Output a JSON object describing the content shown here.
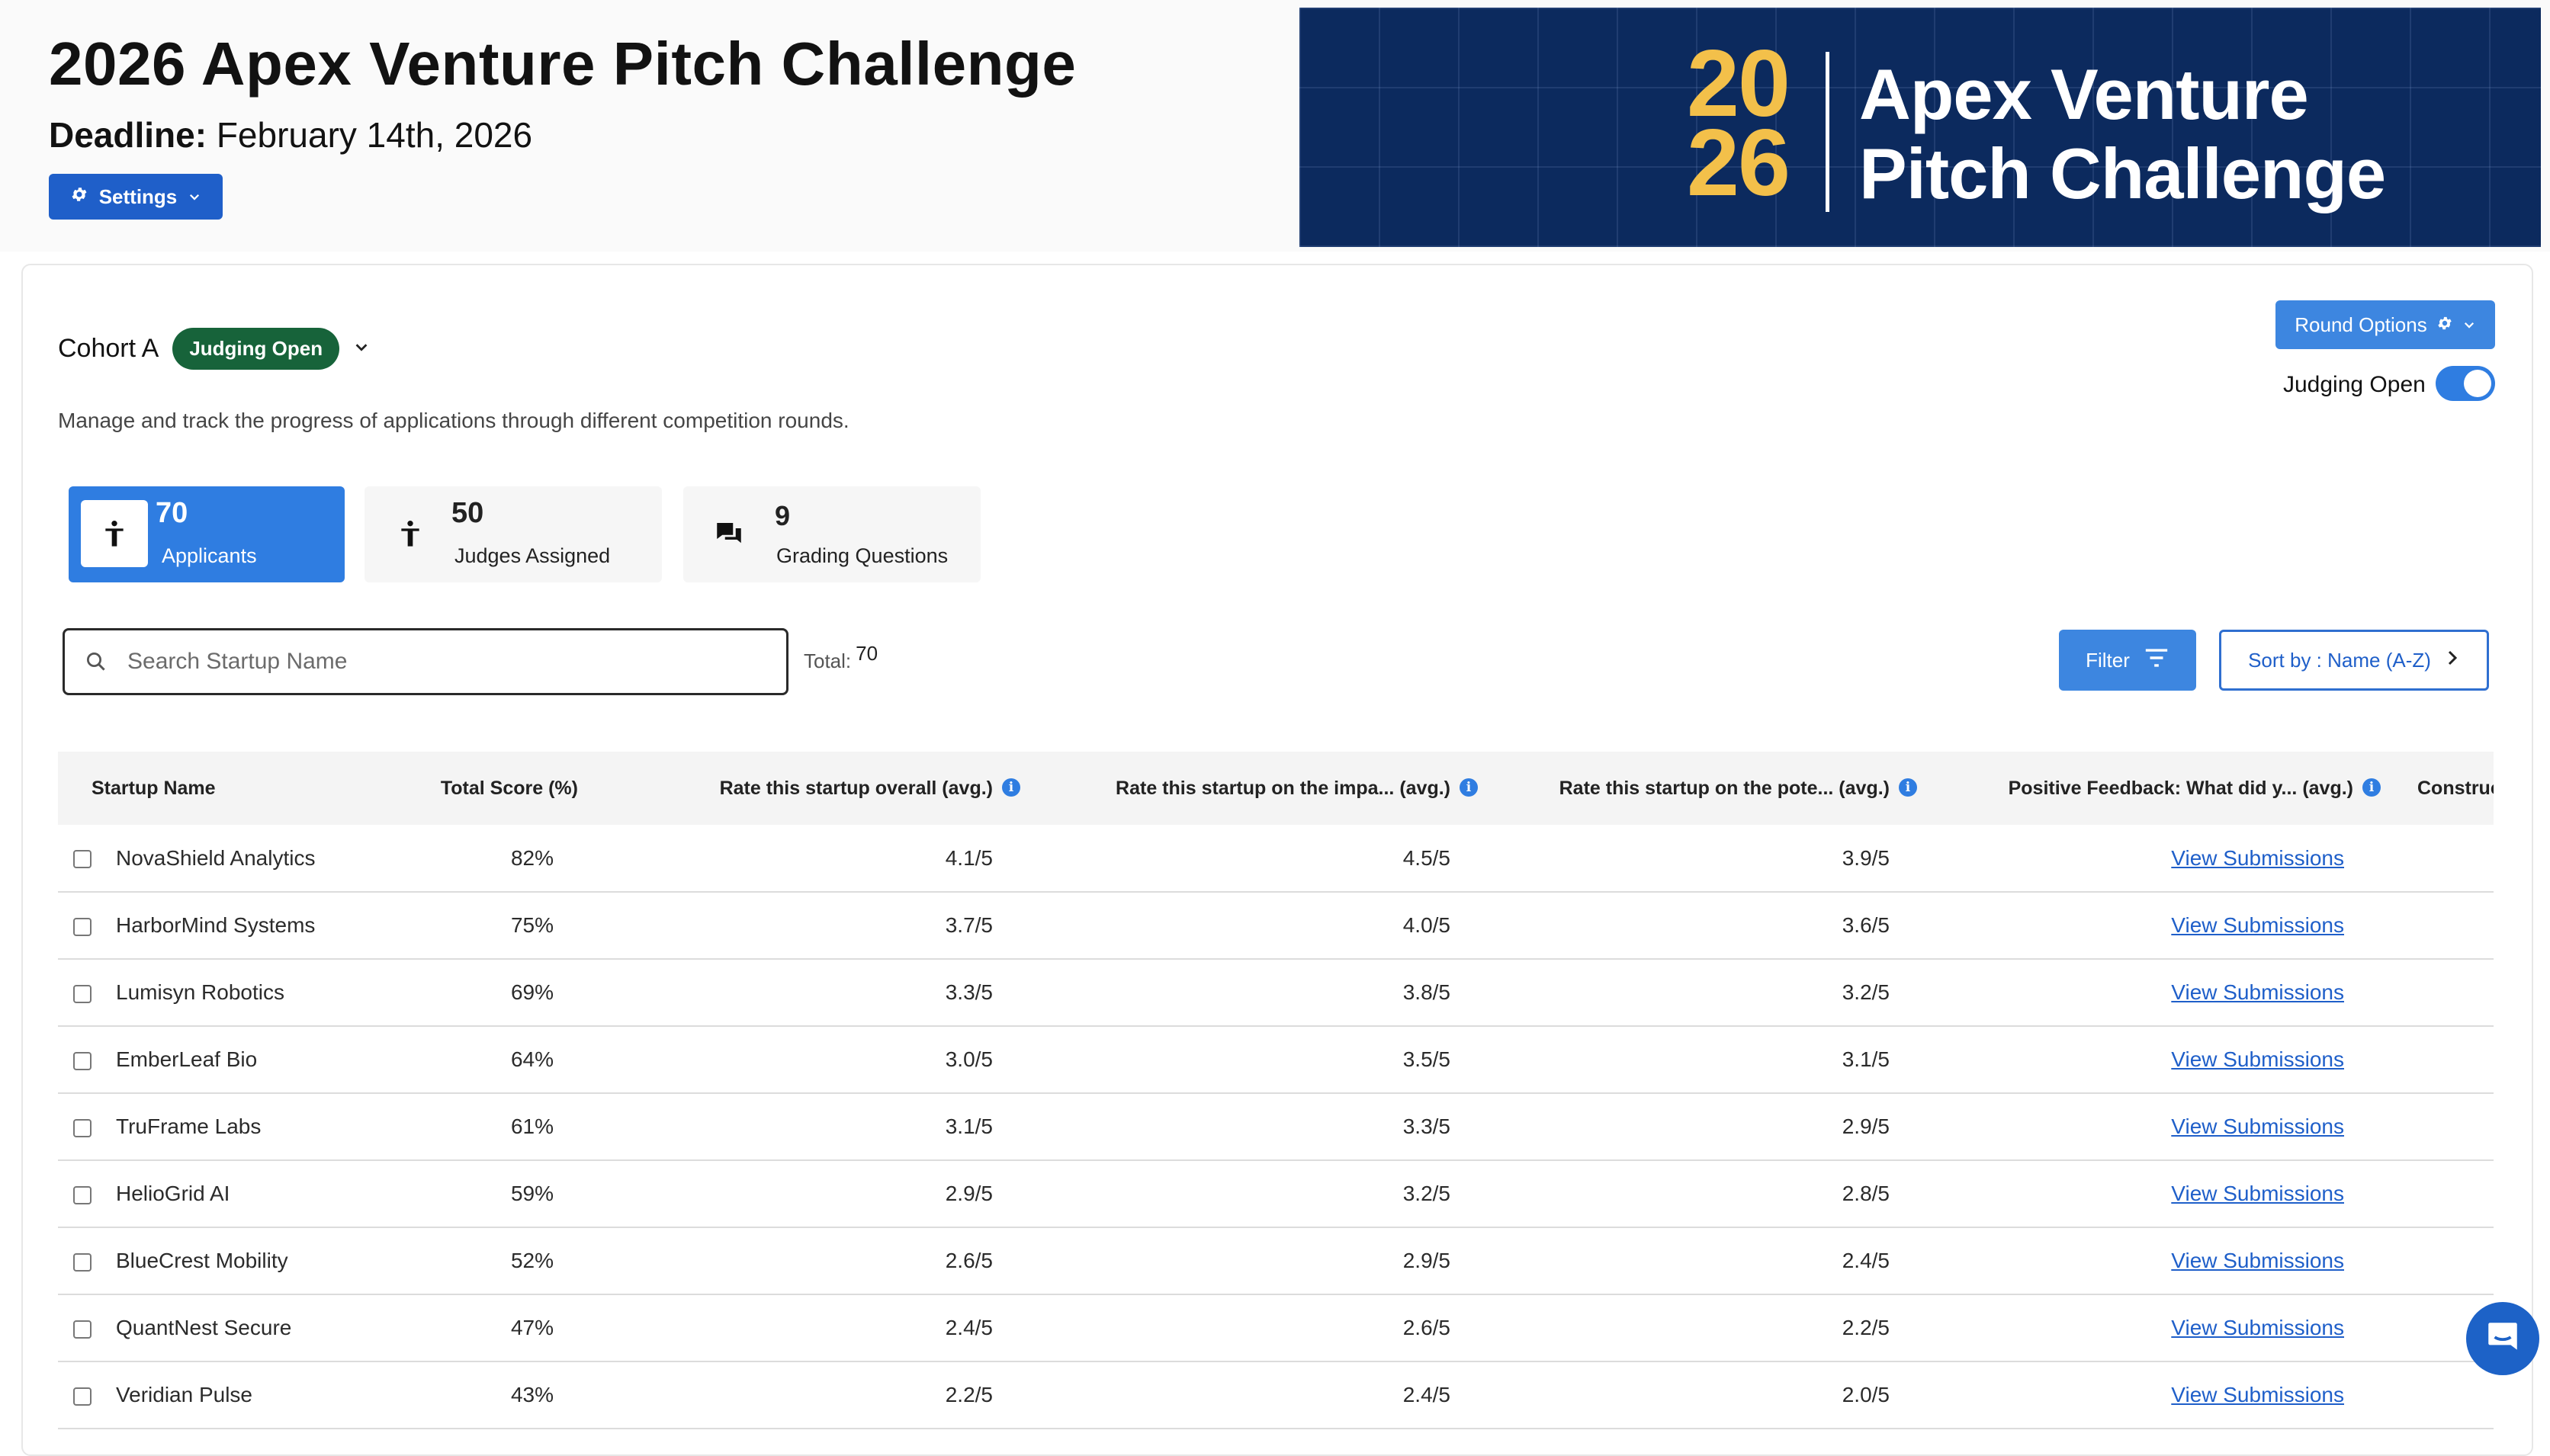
{
  "header": {
    "title": "2026 Apex Venture Pitch Challenge",
    "deadline_label": "Deadline:",
    "deadline_value": "February 14th, 2026",
    "settings_label": "Settings"
  },
  "banner": {
    "year_top": "20",
    "year_bottom": "26",
    "line1": "Apex Venture",
    "line2": "Pitch Challenge"
  },
  "cohort": {
    "name": "Cohort A",
    "status": "Judging Open",
    "description": "Manage and track the progress of applications through different competition rounds."
  },
  "round_options": {
    "label": "Round Options",
    "toggle_label": "Judging Open",
    "toggle_on": true
  },
  "stats": [
    {
      "value": "70",
      "label": "Applicants",
      "icon": "person-icon"
    },
    {
      "value": "50",
      "label": "Judges Assigned",
      "icon": "judge-icon"
    },
    {
      "value": "9",
      "label": "Grading Questions",
      "icon": "chat-bubbles-icon"
    }
  ],
  "search": {
    "placeholder": "Search Startup Name",
    "total_label": "Total:",
    "total_value": "70"
  },
  "filter_label": "Filter",
  "sort_label": "Sort by : Name (A-Z)",
  "table": {
    "columns": [
      "Startup Name",
      "Total Score (%)",
      "Rate this startup overall (avg.)",
      "Rate this startup on the impa... (avg.)",
      "Rate this startup on the pote... (avg.)",
      "Positive Feedback: What did y... (avg.)",
      "Constructiv"
    ],
    "rows": [
      {
        "name": "NovaShield Analytics",
        "score": "82%",
        "overall": "4.1/5",
        "impact": "4.5/5",
        "potential": "3.9/5",
        "feedback": "View Submissions"
      },
      {
        "name": "HarborMind Systems",
        "score": "75%",
        "overall": "3.7/5",
        "impact": "4.0/5",
        "potential": "3.6/5",
        "feedback": "View Submissions"
      },
      {
        "name": "Lumisyn Robotics",
        "score": "69%",
        "overall": "3.3/5",
        "impact": "3.8/5",
        "potential": "3.2/5",
        "feedback": "View Submissions"
      },
      {
        "name": "EmberLeaf Bio",
        "score": "64%",
        "overall": "3.0/5",
        "impact": "3.5/5",
        "potential": "3.1/5",
        "feedback": "View Submissions"
      },
      {
        "name": "TruFrame Labs",
        "score": "61%",
        "overall": "3.1/5",
        "impact": "3.3/5",
        "potential": "2.9/5",
        "feedback": "View Submissions"
      },
      {
        "name": "HelioGrid AI",
        "score": "59%",
        "overall": "2.9/5",
        "impact": "3.2/5",
        "potential": "2.8/5",
        "feedback": "View Submissions"
      },
      {
        "name": "BlueCrest Mobility",
        "score": "52%",
        "overall": "2.6/5",
        "impact": "2.9/5",
        "potential": "2.4/5",
        "feedback": "View Submissions"
      },
      {
        "name": "QuantNest Secure",
        "score": "47%",
        "overall": "2.4/5",
        "impact": "2.6/5",
        "potential": "2.2/5",
        "feedback": "View Submissions"
      },
      {
        "name": "Veridian Pulse",
        "score": "43%",
        "overall": "2.2/5",
        "impact": "2.4/5",
        "potential": "2.0/5",
        "feedback": "View Submissions"
      }
    ]
  },
  "colors": {
    "primary": "#1f5fc9",
    "accent": "#2f7de1",
    "status_green": "#17633a",
    "banner_bg": "#0c2a5e",
    "banner_gold": "#f3c04a"
  }
}
